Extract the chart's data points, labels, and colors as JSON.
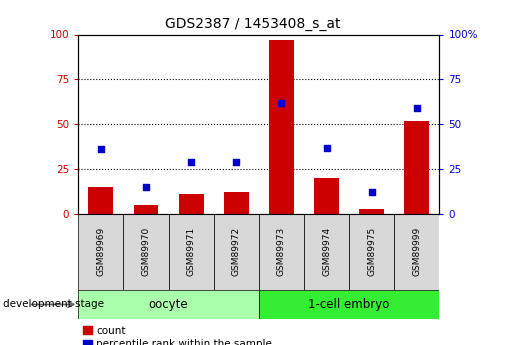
{
  "title": "GDS2387 / 1453408_s_at",
  "samples": [
    "GSM89969",
    "GSM89970",
    "GSM89971",
    "GSM89972",
    "GSM89973",
    "GSM89974",
    "GSM89975",
    "GSM89999"
  ],
  "counts": [
    15,
    5,
    11,
    12,
    97,
    20,
    3,
    52
  ],
  "percentiles": [
    36,
    15,
    29,
    29,
    62,
    37,
    12,
    59
  ],
  "groups": [
    {
      "label": "oocyte",
      "start": 0,
      "end": 4,
      "color": "#AAFFAA"
    },
    {
      "label": "1-cell embryo",
      "start": 4,
      "end": 8,
      "color": "#33EE33"
    }
  ],
  "bar_color": "#CC0000",
  "dot_color": "#0000CC",
  "ylim": [
    0,
    100
  ],
  "yticks": [
    0,
    25,
    50,
    75,
    100
  ],
  "left_yaxis_color": "#CC0000",
  "right_yaxis_color": "#0000CC",
  "legend_count_label": "count",
  "legend_pct_label": "percentile rank within the sample",
  "stage_label": "development stage",
  "bar_width": 0.55,
  "title_fontsize": 10,
  "sample_fontsize": 6.5,
  "group_fontsize": 8.5,
  "legend_fontsize": 7.5,
  "axis_tick_fontsize": 7.5
}
